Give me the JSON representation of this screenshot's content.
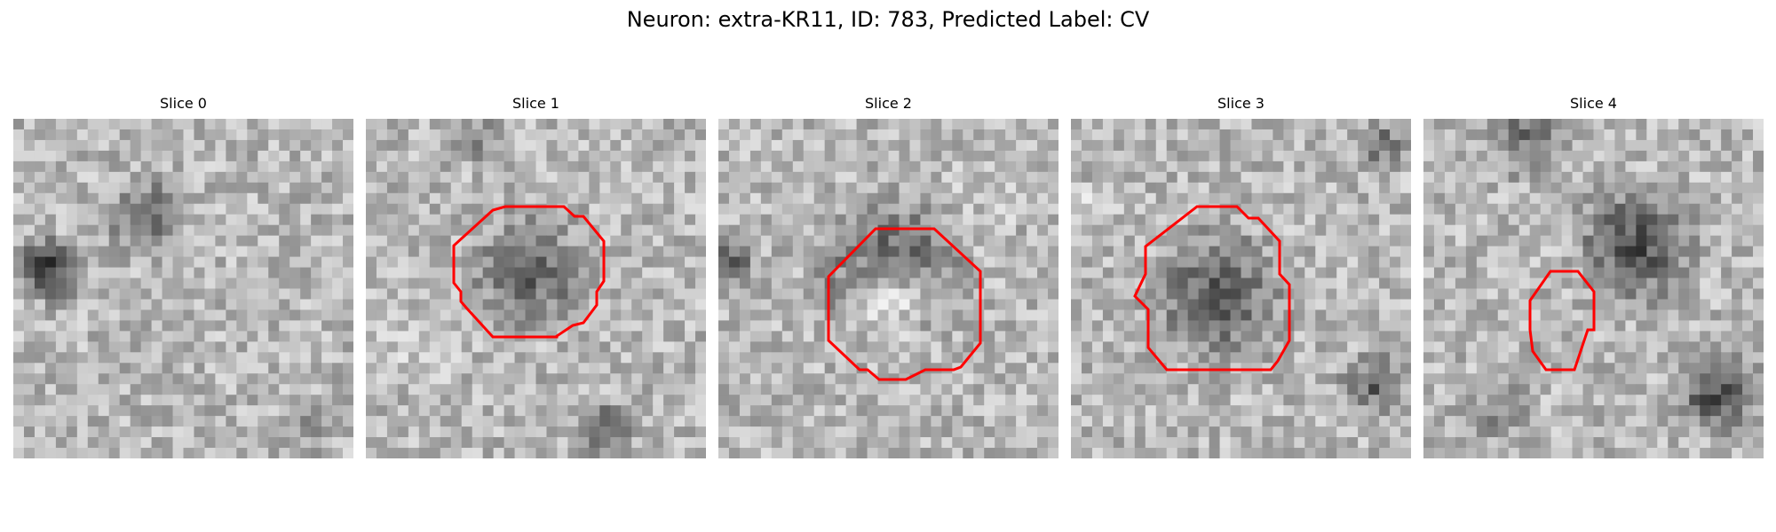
{
  "title": "Neuron: extra-KR11, ID: 783, Predicted Label: CV",
  "colors": {
    "background": "#ffffff",
    "contour": "#ff0000"
  },
  "image_style": "grayscale pixelated microscopy patch, 32x32 grid",
  "panels": [
    {
      "label": "Slice 0",
      "contour": false
    },
    {
      "label": "Slice 1",
      "contour": true
    },
    {
      "label": "Slice 2",
      "contour": true
    },
    {
      "label": "Slice 3",
      "contour": true
    },
    {
      "label": "Slice 4",
      "contour": true
    }
  ]
}
